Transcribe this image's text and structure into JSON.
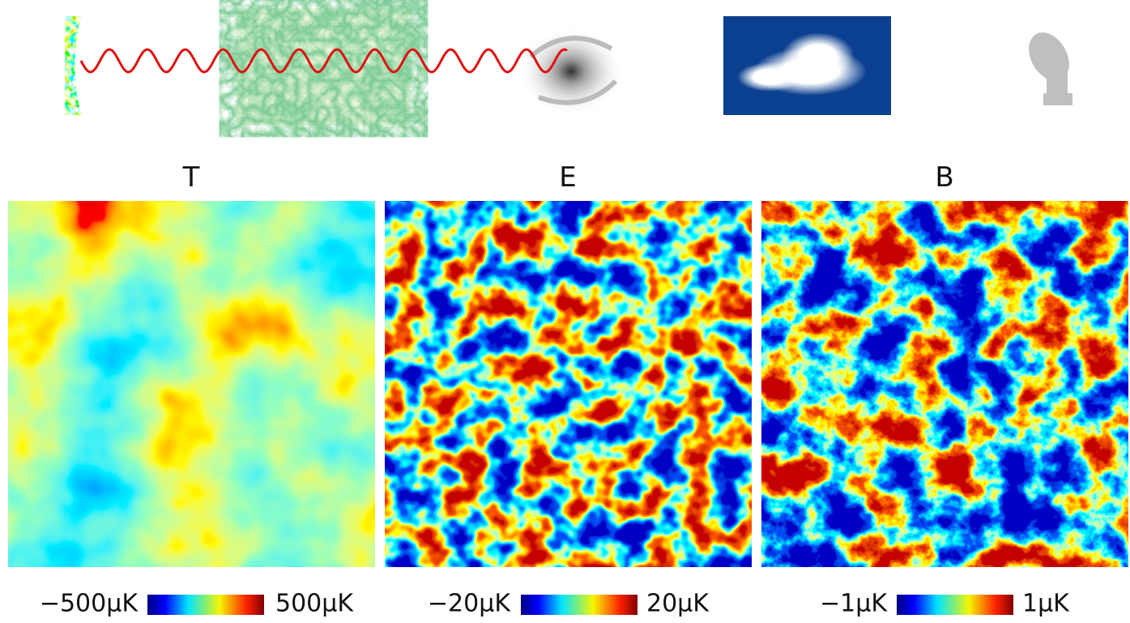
{
  "panels": [
    {
      "title": "T",
      "colorbar": {
        "min_label": "−500μK",
        "max_label": "500μK"
      }
    },
    {
      "title": "E",
      "colorbar": {
        "min_label": "−20μK",
        "max_label": "20μK"
      }
    },
    {
      "title": "B",
      "colorbar": {
        "min_label": "−1μK",
        "max_label": "1μK"
      }
    }
  ]
}
